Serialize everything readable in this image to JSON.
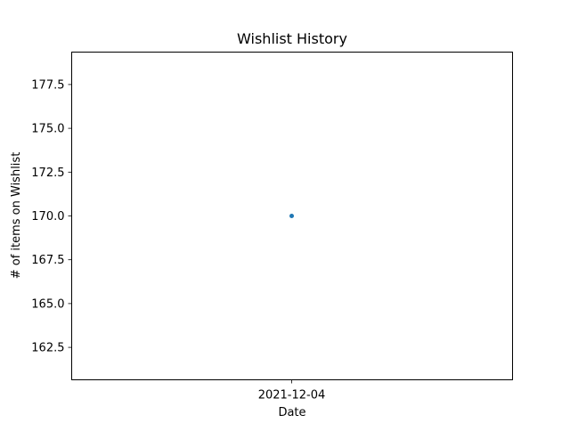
{
  "chart_data": {
    "type": "scatter",
    "title": "Wishlist History",
    "xlabel": "Date",
    "ylabel": "# of items on Wishlist",
    "x": [
      "2021-12-04"
    ],
    "series": [
      {
        "values": [
          170.0
        ],
        "color": "#1f77b4"
      }
    ],
    "xticks": [
      "2021-12-04"
    ],
    "yticks": [
      162.5,
      165.0,
      167.5,
      170.0,
      172.5,
      175.0,
      177.5
    ],
    "ytick_labels": [
      "162.5",
      "165.0",
      "167.5",
      "170.0",
      "172.5",
      "175.0",
      "177.5"
    ],
    "ylim": [
      160.65,
      179.35
    ],
    "grid": false,
    "legend": "none"
  }
}
